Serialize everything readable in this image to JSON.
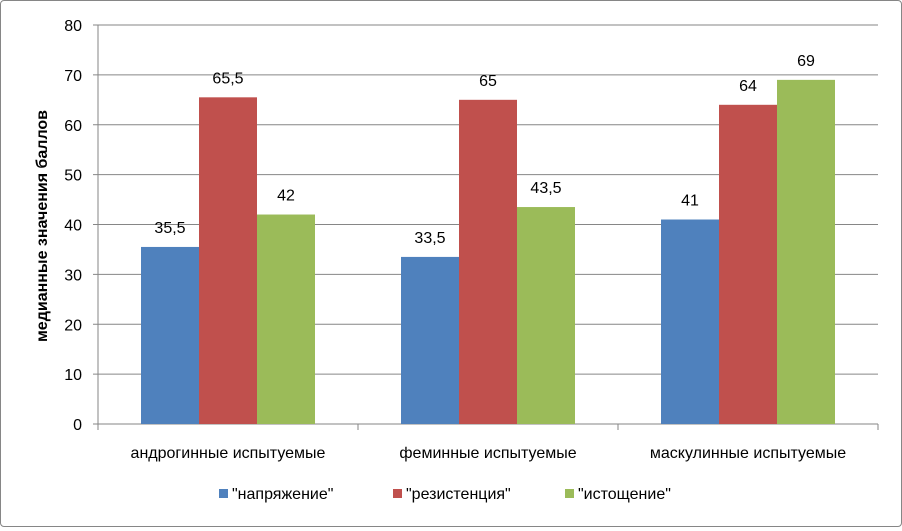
{
  "chart_data": {
    "type": "bar",
    "title": "",
    "xlabel": "",
    "ylabel": "медианные значения баллов",
    "ylim": [
      0,
      80
    ],
    "yticks": [
      0,
      10,
      20,
      30,
      40,
      50,
      60,
      70,
      80
    ],
    "grid": true,
    "legend_position": "bottom",
    "categories": [
      "андрогинные испытуемые",
      "феминные испытуемые",
      "маскулинные испытуемые"
    ],
    "series": [
      {
        "name": "\"напряжение\"",
        "color": "#4F81BD",
        "values": [
          35.5,
          33.5,
          41
        ],
        "labels": [
          "35,5",
          "33,5",
          "41"
        ]
      },
      {
        "name": "\"резистенция\"",
        "color": "#C0504D",
        "values": [
          65.5,
          65,
          64
        ],
        "labels": [
          "65,5",
          "65",
          "64"
        ]
      },
      {
        "name": "\"истощение\"",
        "color": "#9BBB59",
        "values": [
          42,
          43.5,
          69
        ],
        "labels": [
          "42",
          "43,5",
          "69"
        ]
      }
    ]
  }
}
